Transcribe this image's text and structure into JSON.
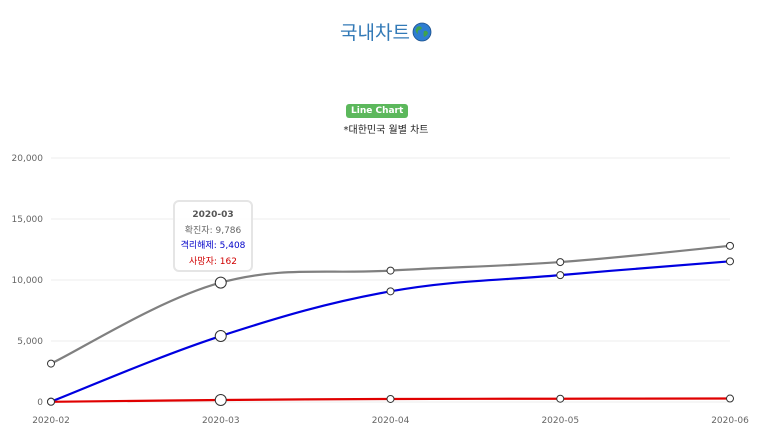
{
  "header": {
    "title": "국내차트",
    "title_icon": "globe-icon",
    "badge": "Line Chart",
    "subtitle": "*대한민국 월별 차트"
  },
  "colors": {
    "title": "#337ab7",
    "badge": "#5cb85c",
    "confirmed": "#808080",
    "released": "#0000e0",
    "deaths": "#e00000"
  },
  "chart_data": {
    "type": "line",
    "categories": [
      "2020-02",
      "2020-03",
      "2020-04",
      "2020-05",
      "2020-06"
    ],
    "series": [
      {
        "name": "확진자",
        "color": "#808080",
        "values": [
          3150,
          9786,
          10770,
          11470,
          12800
        ]
      },
      {
        "name": "격리해제",
        "color": "#0000e0",
        "values": [
          30,
          5408,
          9070,
          10400,
          11530
        ]
      },
      {
        "name": "사망자",
        "color": "#e00000",
        "values": [
          17,
          162,
          248,
          269,
          285
        ]
      }
    ],
    "ylim": [
      0,
      20000
    ],
    "yticks": [
      "0",
      "5,000",
      "10,000",
      "15,000",
      "20,000"
    ],
    "yticks_values": [
      0,
      5000,
      10000,
      15000,
      20000
    ],
    "grid": true,
    "legend": "none",
    "tooltip": {
      "title": "2020-03",
      "rows": [
        {
          "label": "확진자",
          "value": "9,786"
        },
        {
          "label": "격리해제",
          "value": "5,408"
        },
        {
          "label": "사망자",
          "value": "162"
        }
      ]
    }
  }
}
